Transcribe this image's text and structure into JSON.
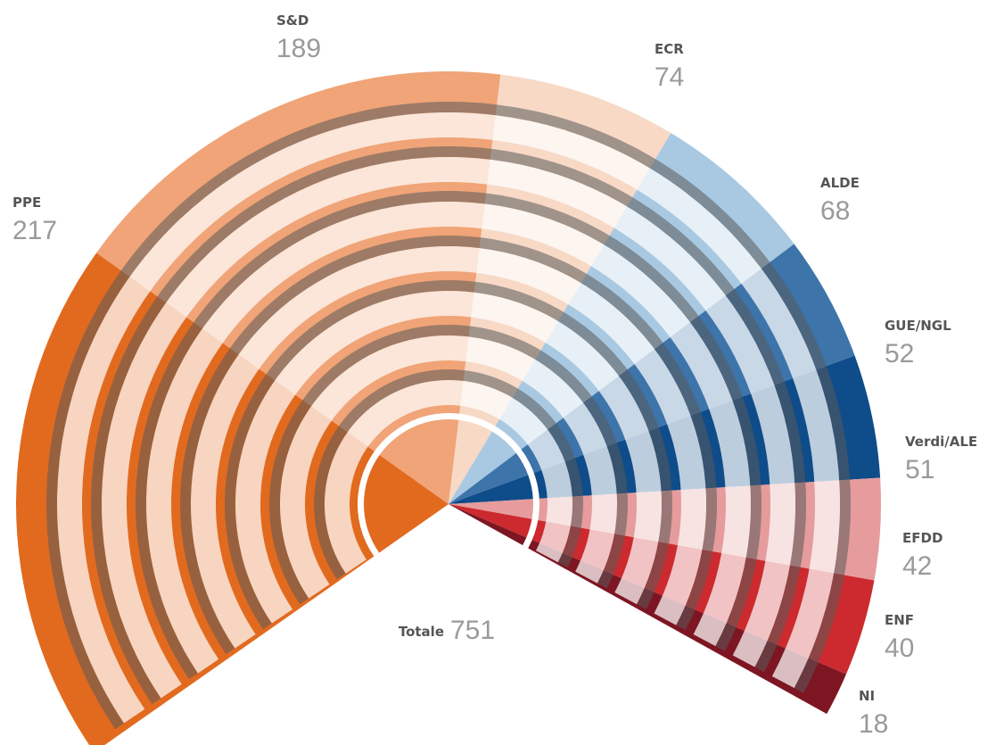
{
  "chart_data": {
    "type": "pie",
    "subtype": "hemicycle",
    "total_label": "Totale",
    "total": 751,
    "series": [
      {
        "name": "PPE",
        "value": 217,
        "color": "#e26a1f"
      },
      {
        "name": "S&D",
        "value": 189,
        "color": "#f0a477"
      },
      {
        "name": "ECR",
        "value": 74,
        "color": "#f7d9c6"
      },
      {
        "name": "ALDE",
        "value": 68,
        "color": "#a9c9e2"
      },
      {
        "name": "GUE/NGL",
        "value": 52,
        "color": "#3d74aa"
      },
      {
        "name": "Verdi/ALE",
        "value": 51,
        "color": "#0f4c8a"
      },
      {
        "name": "EFDD",
        "value": 42,
        "color": "#e69c9c"
      },
      {
        "name": "ENF",
        "value": 40,
        "color": "#cc2a2e"
      },
      {
        "name": "NI",
        "value": 18,
        "color": "#7d1622"
      }
    ]
  }
}
